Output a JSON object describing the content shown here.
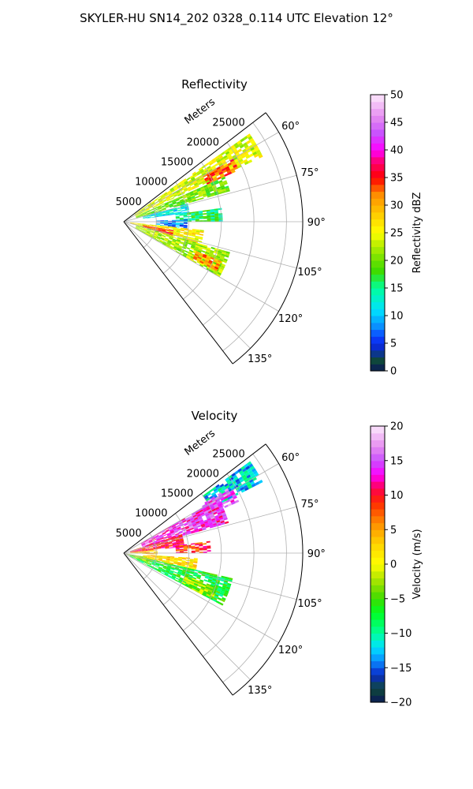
{
  "figure": {
    "suptitle": "SKYLER-HU  SN14_202  0328_0.114 UTC Elevation 12°"
  },
  "chart_data": [
    {
      "type": "polar-sector",
      "title": "Reflectivity",
      "radial_label": "Meters",
      "r_ticks": [
        5000,
        10000,
        15000,
        20000,
        25000
      ],
      "r_tick_labels": [
        "5000",
        "10000",
        "15000",
        "20000",
        "25000"
      ],
      "r_max": 27500,
      "theta_range_deg": [
        52.5,
        142.5
      ],
      "theta_ticks_deg": [
        60,
        75,
        90,
        105,
        120,
        135
      ],
      "theta_tick_labels": [
        "60°",
        "75°",
        "90°",
        "105°",
        "120°",
        "135°"
      ],
      "grid": true,
      "colorbar": {
        "label": "Reflectivity dBZ",
        "range": [
          0,
          50
        ],
        "ticks": [
          0,
          5,
          10,
          15,
          20,
          25,
          30,
          35,
          40,
          45,
          50
        ],
        "tick_labels": [
          "0",
          "5",
          "10",
          "15",
          "20",
          "25",
          "30",
          "35",
          "40",
          "45",
          "50"
        ],
        "stops": [
          {
            "v": 0,
            "c": "#0b1757"
          },
          {
            "v": 2,
            "c": "#0f4a3a"
          },
          {
            "v": 4,
            "c": "#0a28c8"
          },
          {
            "v": 6,
            "c": "#0a3cff"
          },
          {
            "v": 8,
            "c": "#0a8cff"
          },
          {
            "v": 11,
            "c": "#00e2ff"
          },
          {
            "v": 15,
            "c": "#00ff9c"
          },
          {
            "v": 18,
            "c": "#3cdc00"
          },
          {
            "v": 20,
            "c": "#6be000"
          },
          {
            "v": 23,
            "c": "#c0f000"
          },
          {
            "v": 25,
            "c": "#ffff00"
          },
          {
            "v": 28,
            "c": "#ffd200"
          },
          {
            "v": 32,
            "c": "#ff8c00"
          },
          {
            "v": 35,
            "c": "#ff0000"
          },
          {
            "v": 38,
            "c": "#ff0078"
          },
          {
            "v": 40,
            "c": "#ff00ff"
          },
          {
            "v": 43,
            "c": "#c850ff"
          },
          {
            "v": 46,
            "c": "#e68cf0"
          },
          {
            "v": 50,
            "c": "#fce8fc"
          }
        ]
      },
      "field_regions": [
        {
          "theta": [
            55,
            65
          ],
          "r": [
            2000,
            23500
          ],
          "value": 24
        },
        {
          "theta": [
            60,
            66
          ],
          "r": [
            14000,
            19000
          ],
          "value": 33
        },
        {
          "theta": [
            66,
            74
          ],
          "r": [
            2000,
            16500
          ],
          "value": 20
        },
        {
          "theta": [
            74,
            82
          ],
          "r": [
            3000,
            10000
          ],
          "value": 12
        },
        {
          "theta": [
            82,
            90
          ],
          "r": [
            8000,
            15000
          ],
          "value": 16
        },
        {
          "theta": [
            88,
            96
          ],
          "r": [
            5000,
            9500
          ],
          "value": 8
        },
        {
          "theta": [
            96,
            106
          ],
          "r": [
            1000,
            12000
          ],
          "value": 26
        },
        {
          "theta": [
            100,
            106
          ],
          "r": [
            3000,
            7500
          ],
          "value": 34
        },
        {
          "theta": [
            106,
            120
          ],
          "r": [
            2000,
            17000
          ],
          "value": 22
        },
        {
          "theta": [
            112,
            118
          ],
          "r": [
            12000,
            16000
          ],
          "value": 31
        }
      ]
    },
    {
      "type": "polar-sector",
      "title": "Velocity",
      "radial_label": "Meters",
      "r_ticks": [
        5000,
        10000,
        15000,
        20000,
        25000
      ],
      "r_tick_labels": [
        "5000",
        "10000",
        "15000",
        "20000",
        "25000"
      ],
      "r_max": 27500,
      "theta_range_deg": [
        52.5,
        142.5
      ],
      "theta_ticks_deg": [
        60,
        75,
        90,
        105,
        120,
        135
      ],
      "theta_tick_labels": [
        "60°",
        "75°",
        "90°",
        "105°",
        "120°",
        "135°"
      ],
      "grid": true,
      "colorbar": {
        "label": "Velocity (m/s)",
        "range": [
          -20,
          20
        ],
        "ticks": [
          -20,
          -15,
          -10,
          -5,
          0,
          5,
          10,
          15,
          20
        ],
        "tick_labels": [
          "−20",
          "−15",
          "−10",
          "−5",
          "0",
          "5",
          "10",
          "15",
          "20"
        ],
        "stops": [
          {
            "v": -20,
            "c": "#0b1757"
          },
          {
            "v": -18,
            "c": "#0f4a3a"
          },
          {
            "v": -16,
            "c": "#0a28c8"
          },
          {
            "v": -14,
            "c": "#0a8cff"
          },
          {
            "v": -12,
            "c": "#00e2ff"
          },
          {
            "v": -10,
            "c": "#00ff9c"
          },
          {
            "v": -7,
            "c": "#00ff22"
          },
          {
            "v": -5,
            "c": "#3cdc00"
          },
          {
            "v": -3,
            "c": "#8ee000"
          },
          {
            "v": -1,
            "c": "#d8f000"
          },
          {
            "v": 0,
            "c": "#ffff00"
          },
          {
            "v": 3,
            "c": "#ffd200"
          },
          {
            "v": 6,
            "c": "#ff8c00"
          },
          {
            "v": 9,
            "c": "#ff2800"
          },
          {
            "v": 11,
            "c": "#ff0050"
          },
          {
            "v": 13,
            "c": "#ff00ff"
          },
          {
            "v": 15,
            "c": "#c850ff"
          },
          {
            "v": 17,
            "c": "#e68cf0"
          },
          {
            "v": 20,
            "c": "#fce8fc"
          }
        ]
      },
      "field_regions": [
        {
          "theta": [
            54,
            63
          ],
          "r": [
            15000,
            23500
          ],
          "value": -12
        },
        {
          "theta": [
            58,
            66
          ],
          "r": [
            14000,
            19000
          ],
          "value": 15
        },
        {
          "theta": [
            60,
            74
          ],
          "r": [
            3000,
            16500
          ],
          "value": 14
        },
        {
          "theta": [
            72,
            84
          ],
          "r": [
            1000,
            9000
          ],
          "value": 10
        },
        {
          "theta": [
            82,
            90
          ],
          "r": [
            8000,
            13000
          ],
          "value": 9
        },
        {
          "theta": [
            84,
            92
          ],
          "r": [
            1000,
            5000
          ],
          "value": 4
        },
        {
          "theta": [
            94,
            103
          ],
          "r": [
            3000,
            11000
          ],
          "value": 2
        },
        {
          "theta": [
            103,
            118
          ],
          "r": [
            1000,
            17000
          ],
          "value": -7
        },
        {
          "theta": [
            110,
            118
          ],
          "r": [
            10000,
            15000
          ],
          "value": -3
        },
        {
          "theta": [
            100,
            112
          ],
          "r": [
            0,
            4000
          ],
          "value": -2
        }
      ]
    }
  ]
}
